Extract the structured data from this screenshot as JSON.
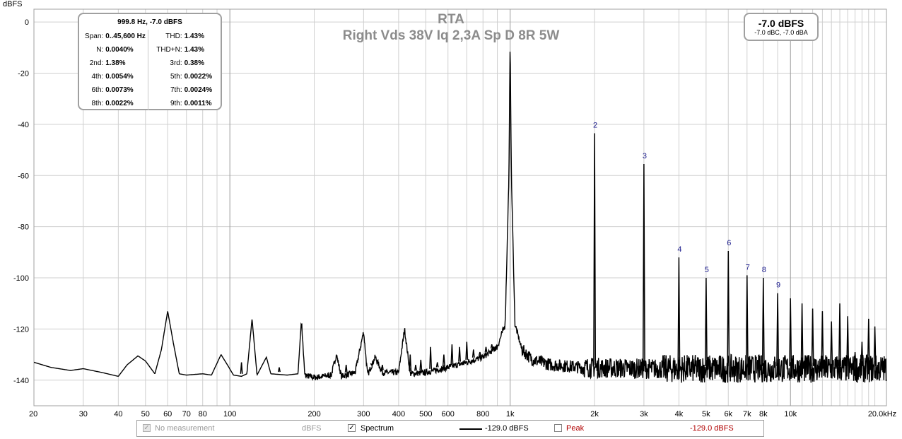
{
  "chart_data": {
    "type": "line",
    "title": "RTA",
    "subtitle": "Right Vds 38V Iq 2,3A Sp D 8R 5W",
    "ylabel": "dBFS",
    "xlabel": "",
    "x_scale": "log",
    "xlim": [
      20,
      22000
    ],
    "ylim": [
      -150,
      5
    ],
    "grid": true,
    "y_ticks": [
      {
        "value": 0,
        "label": "0"
      },
      {
        "value": -20,
        "label": "-20"
      },
      {
        "value": -40,
        "label": "-40"
      },
      {
        "value": -60,
        "label": "-60"
      },
      {
        "value": -80,
        "label": "-80"
      },
      {
        "value": -100,
        "label": "-100"
      },
      {
        "value": -120,
        "label": "-120"
      },
      {
        "value": -140,
        "label": "-140"
      }
    ],
    "x_ticks": [
      {
        "value": 20,
        "label": "20"
      },
      {
        "value": 30,
        "label": "30"
      },
      {
        "value": 40,
        "label": "40"
      },
      {
        "value": 50,
        "label": "50"
      },
      {
        "value": 60,
        "label": "60"
      },
      {
        "value": 70,
        "label": "70"
      },
      {
        "value": 80,
        "label": "80"
      },
      {
        "value": 100,
        "label": "100"
      },
      {
        "value": 200,
        "label": "200"
      },
      {
        "value": 300,
        "label": "300"
      },
      {
        "value": 400,
        "label": "400"
      },
      {
        "value": 500,
        "label": "500"
      },
      {
        "value": 600,
        "label": "600"
      },
      {
        "value": 800,
        "label": "800"
      },
      {
        "value": 1000,
        "label": "1k"
      },
      {
        "value": 2000,
        "label": "2k"
      },
      {
        "value": 3000,
        "label": "3k"
      },
      {
        "value": 4000,
        "label": "4k"
      },
      {
        "value": 5000,
        "label": "5k"
      },
      {
        "value": 6000,
        "label": "6k"
      },
      {
        "value": 7000,
        "label": "7k"
      },
      {
        "value": 8000,
        "label": "8k"
      },
      {
        "value": 10000,
        "label": "10k"
      },
      {
        "value": 20000,
        "label": "20.0kHz"
      }
    ],
    "x_minor": [
      90,
      700,
      900,
      9000,
      11000,
      12000,
      13000,
      14000,
      15000,
      16000,
      17000,
      18000,
      19000
    ],
    "x_major": [
      100,
      1000,
      10000
    ],
    "series": [
      {
        "name": "Spectrum",
        "color": "#000000",
        "noise_floor": [
          [
            20,
            -133
          ],
          [
            23,
            -135
          ],
          [
            27,
            -136.2
          ],
          [
            30,
            -135.5
          ],
          [
            35,
            -137
          ],
          [
            40,
            -138.5
          ],
          [
            43,
            -134
          ],
          [
            47,
            -130.5
          ],
          [
            50,
            -132.5
          ],
          [
            54,
            -137.5
          ],
          [
            57,
            -128
          ],
          [
            60,
            -113
          ],
          [
            63,
            -126
          ],
          [
            66,
            -137.5
          ],
          [
            70,
            -138
          ],
          [
            80,
            -137.5
          ],
          [
            86,
            -138
          ],
          [
            93,
            -130
          ],
          [
            98,
            -134
          ],
          [
            103,
            -138
          ],
          [
            110,
            -138.5
          ],
          [
            115,
            -137.5
          ],
          [
            120,
            -116
          ],
          [
            125,
            -138
          ],
          [
            135,
            -131
          ],
          [
            140,
            -137.5
          ],
          [
            160,
            -138
          ],
          [
            175,
            -137.5
          ],
          [
            180,
            -116.5
          ],
          [
            185,
            -138
          ],
          [
            200,
            -139
          ],
          [
            230,
            -138
          ],
          [
            240,
            -130
          ],
          [
            250,
            -138.5
          ],
          [
            280,
            -137
          ],
          [
            300,
            -121
          ],
          [
            310,
            -138
          ],
          [
            330,
            -131
          ],
          [
            350,
            -137
          ],
          [
            400,
            -137
          ],
          [
            420,
            -120
          ],
          [
            440,
            -137.5
          ],
          [
            500,
            -137
          ],
          [
            600,
            -135
          ],
          [
            700,
            -133
          ],
          [
            800,
            -131
          ],
          [
            900,
            -127
          ],
          [
            960,
            -118
          ],
          [
            990,
            -60
          ],
          [
            1000,
            -7
          ],
          [
            1010,
            -60
          ],
          [
            1040,
            -118
          ],
          [
            1100,
            -128
          ],
          [
            1200,
            -132
          ],
          [
            1400,
            -134
          ],
          [
            1800,
            -135
          ],
          [
            3000,
            -135.5
          ],
          [
            6000,
            -135.5
          ],
          [
            22000,
            -135.5
          ]
        ],
        "harmonics": [
          {
            "label": "2",
            "freq": 2000,
            "level": -43.5
          },
          {
            "label": "3",
            "freq": 3000,
            "level": -55.5
          },
          {
            "label": "4",
            "freq": 4000,
            "level": -92
          },
          {
            "label": "5",
            "freq": 5000,
            "level": -100
          },
          {
            "label": "6",
            "freq": 6000,
            "level": -89.5
          },
          {
            "label": "7",
            "freq": 7000,
            "level": -99
          },
          {
            "label": "8",
            "freq": 8000,
            "level": -100
          },
          {
            "label": "9",
            "freq": 9000,
            "level": -106
          }
        ],
        "spurs": [
          [
            110,
            -133
          ],
          [
            150,
            -135
          ],
          [
            200,
            -138
          ],
          [
            260,
            -134
          ],
          [
            320,
            -134
          ],
          [
            350,
            -134
          ],
          [
            440,
            -130
          ],
          [
            460,
            -134
          ],
          [
            480,
            -132
          ],
          [
            520,
            -127
          ],
          [
            550,
            -133
          ],
          [
            580,
            -130
          ],
          [
            620,
            -126
          ],
          [
            660,
            -127
          ],
          [
            700,
            -125
          ],
          [
            740,
            -128
          ],
          [
            780,
            -129
          ],
          [
            820,
            -127
          ],
          [
            860,
            -126
          ],
          [
            880,
            -128
          ],
          [
            10000,
            -108
          ],
          [
            11000,
            -110
          ],
          [
            12000,
            -112
          ],
          [
            13000,
            -113
          ],
          [
            14000,
            -117
          ],
          [
            15000,
            -110
          ],
          [
            16000,
            -115
          ],
          [
            17000,
            -129
          ],
          [
            18000,
            -125
          ],
          [
            19000,
            -116
          ],
          [
            20000,
            -119
          ]
        ]
      }
    ]
  },
  "stats_box": {
    "header": "999.8 Hz, -7.0 dBFS",
    "rows": [
      {
        "k1": "Span:",
        "v1": "0..45,600 Hz",
        "k2": "THD:",
        "v2": "1.43%"
      },
      {
        "k1": "N:",
        "v1": "0.0040%",
        "k2": "THD+N:",
        "v2": "1.43%"
      },
      {
        "k1": "2nd:",
        "v1": "1.38%",
        "k2": "3rd:",
        "v2": "0.38%"
      },
      {
        "k1": "4th:",
        "v1": "0.0054%",
        "k2": "5th:",
        "v2": "0.0022%"
      },
      {
        "k1": "6th:",
        "v1": "0.0073%",
        "k2": "7th:",
        "v2": "0.0024%"
      },
      {
        "k1": "8th:",
        "v1": "0.0022%",
        "k2": "9th:",
        "v2": "0.0011%"
      }
    ]
  },
  "level_box": {
    "main": "-7.0 dBFS",
    "sub": "-7.0 dBC, -7.0 dBA"
  },
  "legend": {
    "no_measurement_label": "No measurement",
    "no_measurement_unit": "dBFS",
    "spectrum_label": "Spectrum",
    "spectrum_value": "-129.0 dBFS",
    "peak_label": "Peak",
    "peak_value": "-129.0 dBFS",
    "spectrum_checked": true,
    "peak_checked": false
  }
}
